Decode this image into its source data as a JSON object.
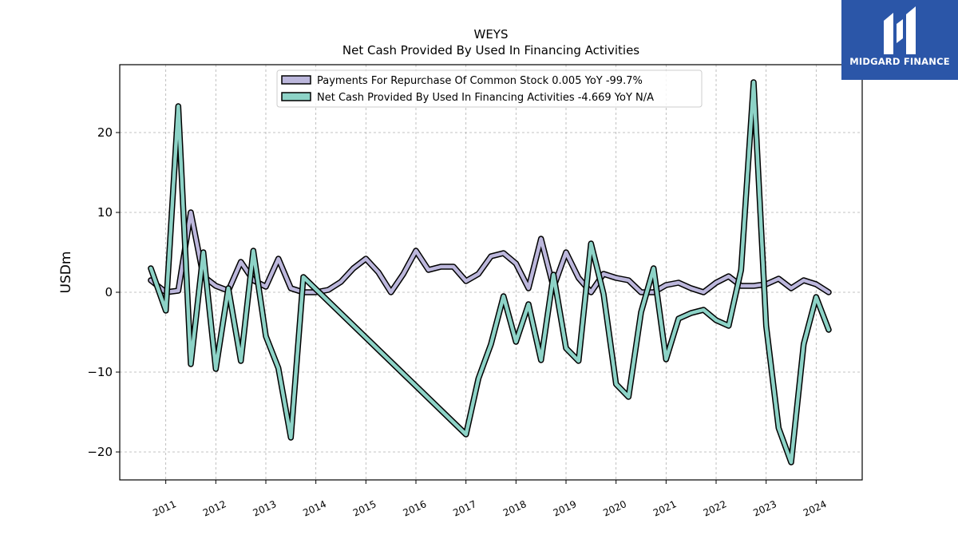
{
  "brand": {
    "name": "MIDGARD FINANCE",
    "bg_color": "#2b56a8"
  },
  "chart_data": {
    "type": "line",
    "title": "WEYS",
    "subtitle": "Net Cash Provided By Used In Financing Activities",
    "xlabel": "",
    "ylabel": "USDm",
    "ylim": [
      -23.5,
      28.5
    ],
    "xlim": [
      2010.08,
      2024.92
    ],
    "yticks": [
      -20,
      -10,
      0,
      10,
      20
    ],
    "ytick_labels": [
      "−20",
      "−10",
      "0",
      "10",
      "20"
    ],
    "xticks": [
      2011,
      2012,
      2013,
      2014,
      2015,
      2016,
      2017,
      2018,
      2019,
      2020,
      2021,
      2022,
      2023,
      2024
    ],
    "xtick_labels": [
      "2011",
      "2012",
      "2013",
      "2014",
      "2015",
      "2016",
      "2017",
      "2018",
      "2019",
      "2020",
      "2021",
      "2022",
      "2023",
      "2024"
    ],
    "grid": true,
    "legend_position": "top-center",
    "series": [
      {
        "name": "Payments For Repurchase Of Common Stock",
        "legend_label": "Payments For Repurchase Of Common Stock  0.005 YoY -99.7%",
        "color": "#bcb7dc",
        "x": [
          2010.7,
          2011.0,
          2011.25,
          2011.5,
          2011.75,
          2012.0,
          2012.25,
          2012.5,
          2012.75,
          2013.0,
          2013.25,
          2013.5,
          2013.75,
          2014.0,
          2014.25,
          2014.5,
          2014.75,
          2015.0,
          2015.25,
          2015.5,
          2015.75,
          2016.0,
          2016.25,
          2016.5,
          2016.75,
          2017.0,
          2017.25,
          2017.5,
          2017.75,
          2018.0,
          2018.25,
          2018.5,
          2018.75,
          2019.0,
          2019.25,
          2019.5,
          2019.75,
          2020.0,
          2020.25,
          2020.5,
          2020.75,
          2021.0,
          2021.25,
          2021.5,
          2021.75,
          2022.0,
          2022.25,
          2022.5,
          2022.75,
          2023.0,
          2023.25,
          2023.5,
          2023.75,
          2024.0,
          2024.25
        ],
        "values": [
          1.5,
          0.0,
          0.2,
          10.0,
          2.0,
          0.8,
          0.2,
          3.8,
          1.5,
          0.7,
          4.2,
          0.5,
          0.0,
          0.0,
          0.3,
          1.3,
          3.0,
          4.2,
          2.5,
          0.0,
          2.3,
          5.2,
          2.8,
          3.2,
          3.2,
          1.4,
          2.3,
          4.5,
          4.9,
          3.6,
          0.5,
          6.7,
          0.6,
          5.0,
          1.8,
          0.0,
          2.3,
          1.8,
          1.5,
          0.0,
          0.0,
          0.9,
          1.2,
          0.5,
          0.0,
          1.2,
          2.0,
          0.8,
          0.8,
          1.0,
          1.7,
          0.5,
          1.5,
          1.0,
          0.0
        ]
      },
      {
        "name": "Net Cash Provided By Used In Financing Activities",
        "legend_label": "Net Cash Provided By Used In Financing Activities  -4.669 YoY N/A",
        "color": "#8dd3c7",
        "x": [
          2010.7,
          2011.0,
          2011.25,
          2011.5,
          2011.75,
          2012.0,
          2012.25,
          2012.5,
          2012.75,
          2013.0,
          2013.25,
          2013.5,
          2013.75,
          2017.0,
          2017.25,
          2017.5,
          2017.75,
          2018.0,
          2018.25,
          2018.5,
          2018.75,
          2019.0,
          2019.25,
          2019.5,
          2019.75,
          2020.0,
          2020.25,
          2020.5,
          2020.75,
          2021.0,
          2021.25,
          2021.5,
          2021.75,
          2022.0,
          2022.25,
          2022.5,
          2022.75,
          2023.0,
          2023.25,
          2023.5,
          2023.75,
          2024.0,
          2024.25
        ],
        "values": [
          3.0,
          -2.3,
          23.3,
          -9.0,
          5.0,
          -9.6,
          0.5,
          -8.6,
          5.2,
          -5.5,
          -9.5,
          -18.2,
          1.9,
          -17.8,
          -10.8,
          -6.5,
          -0.5,
          -6.2,
          -1.5,
          -8.5,
          2.2,
          -7.0,
          -8.6,
          6.1,
          -0.2,
          -11.5,
          -13.1,
          -2.5,
          3.0,
          -8.4,
          -3.3,
          -2.6,
          -2.2,
          -3.5,
          -4.2,
          2.8,
          26.3,
          -4.2,
          -17.0,
          -21.3,
          -6.5,
          -0.6,
          -4.7
        ]
      }
    ]
  }
}
